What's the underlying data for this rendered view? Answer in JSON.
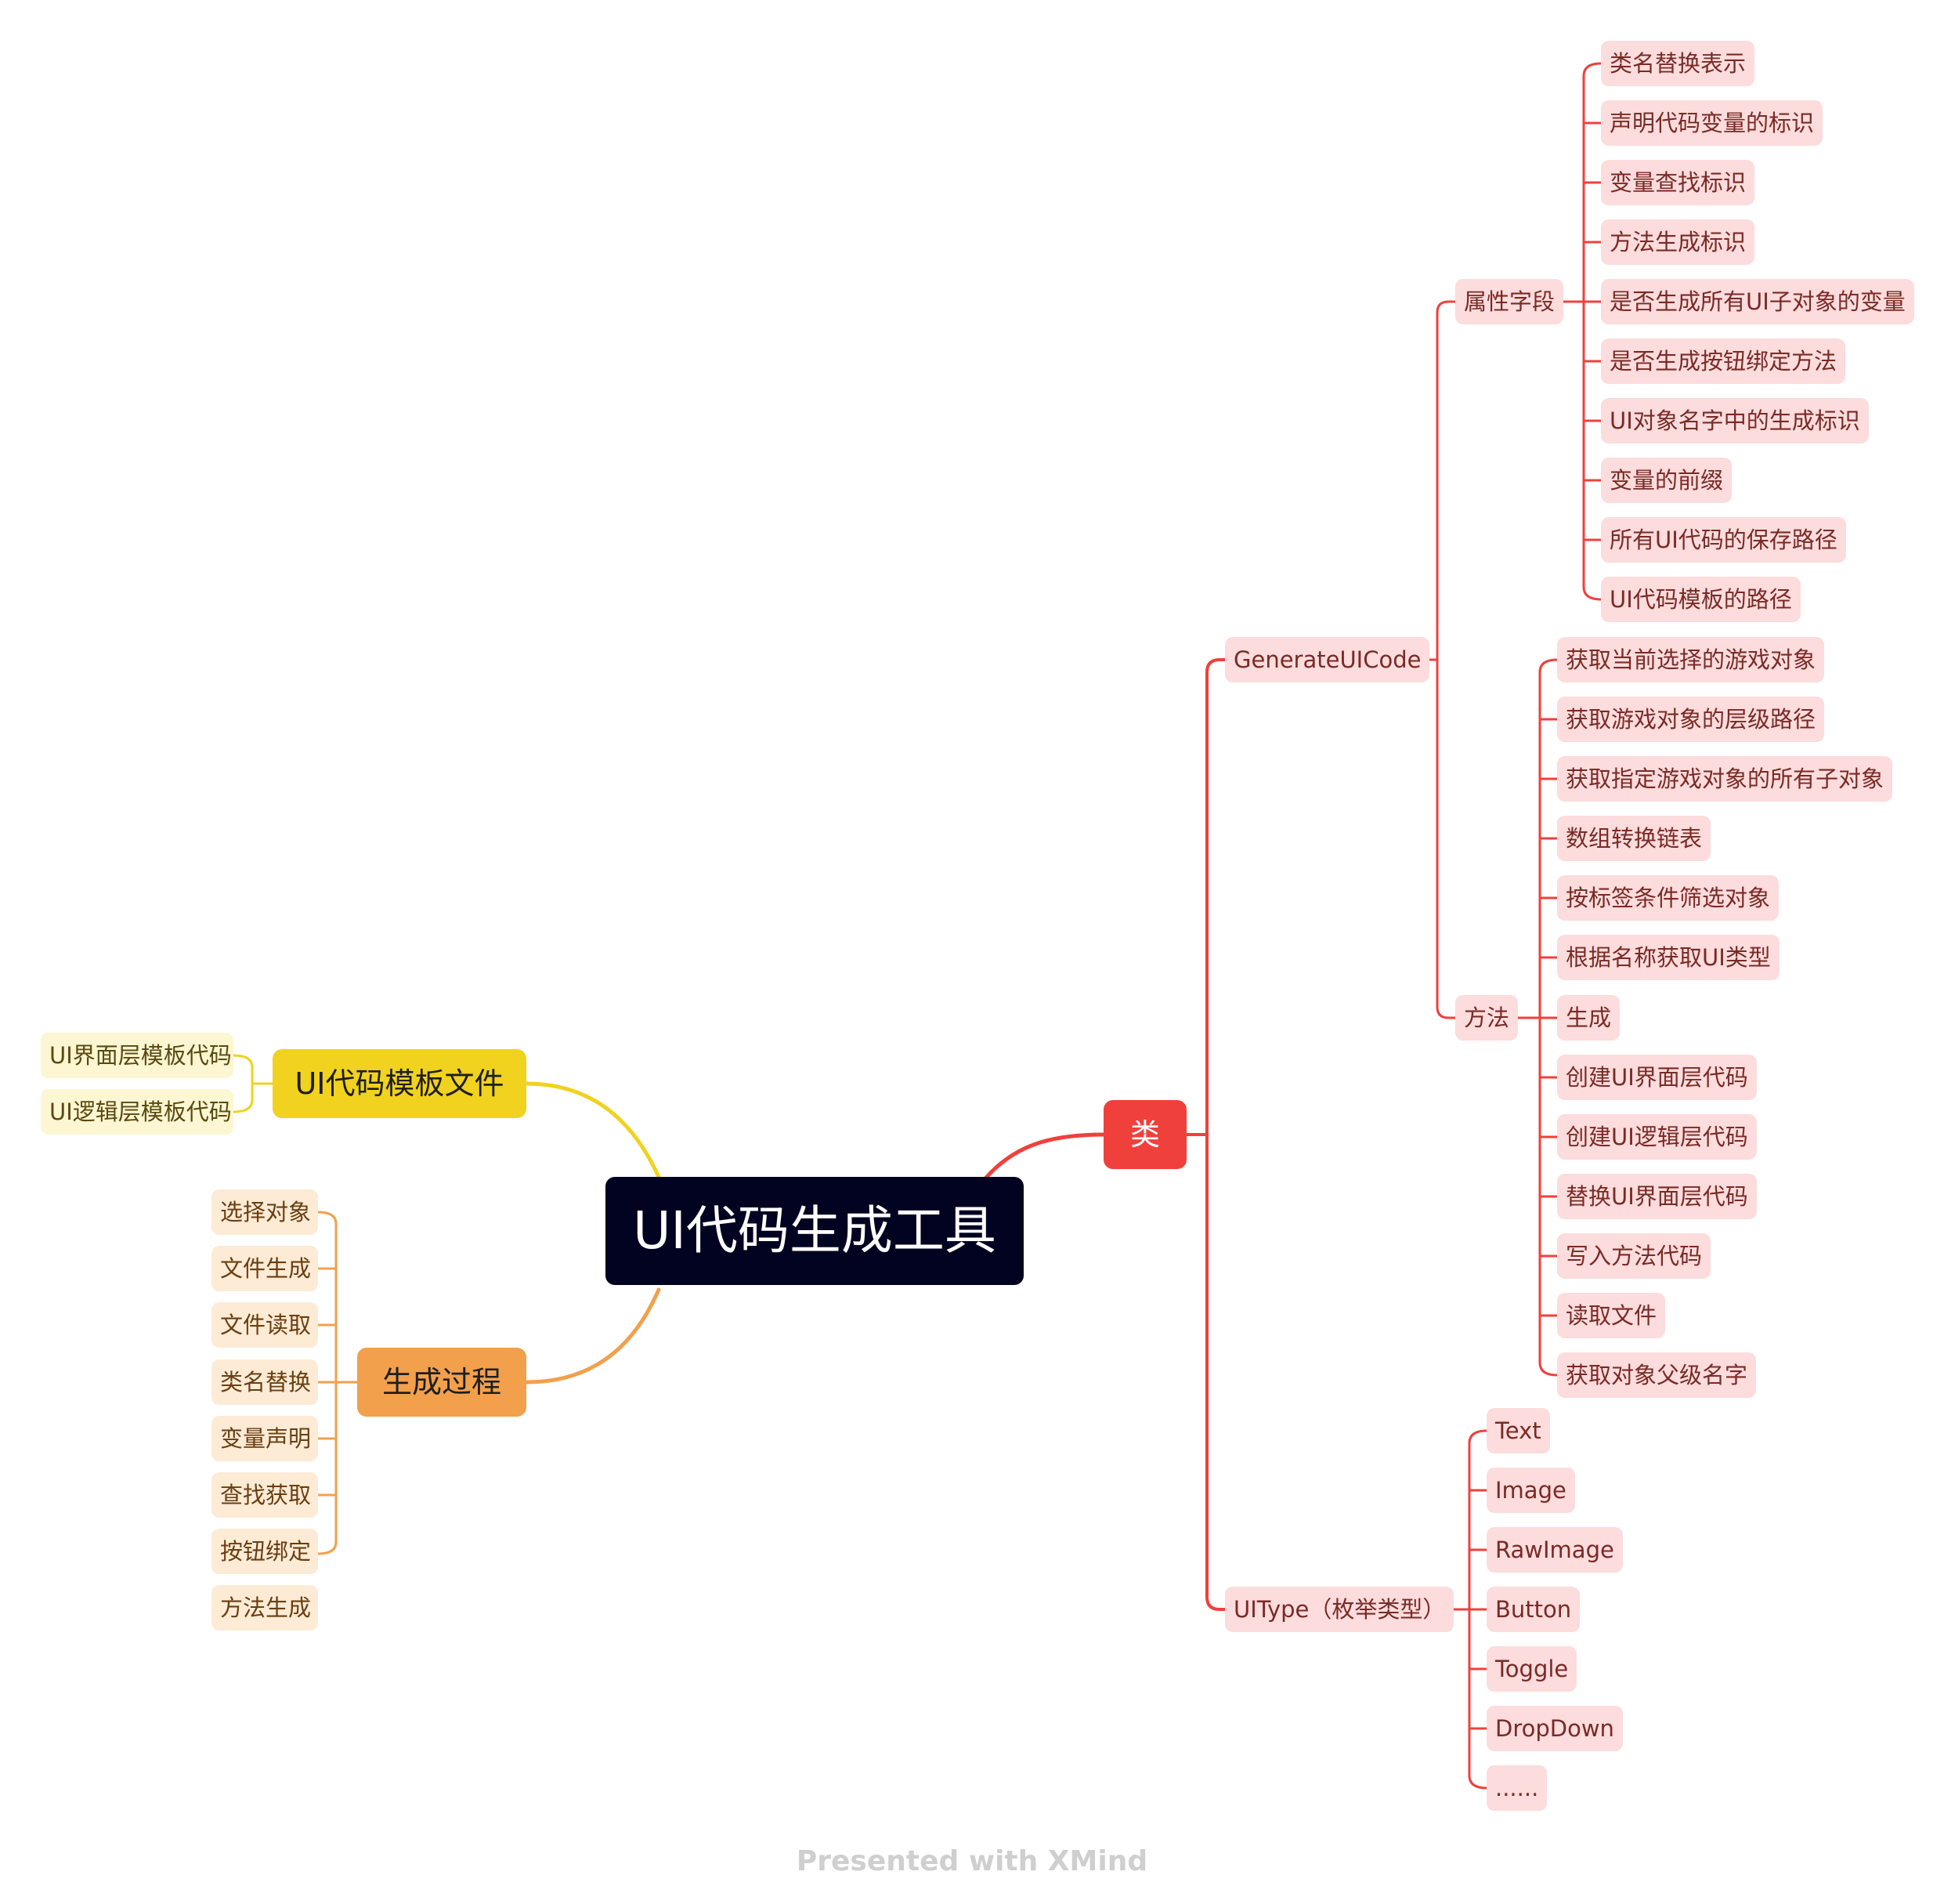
{
  "central_topic": "UI代码生成工具",
  "colors": {
    "red": "#f0403c",
    "yellow": "#f0d21f",
    "orange": "#f2a04c",
    "center": "#020321"
  },
  "branches": {
    "class": {
      "label": "类",
      "generate_ui_code": {
        "label": "GenerateUICode",
        "fields": {
          "label": "属性字段",
          "items": [
            "类名替换表示",
            "声明代码变量的标识",
            "变量查找标识",
            "方法生成标识",
            "是否生成所有UI子对象的变量",
            "是否生成按钮绑定方法",
            "UI对象名字中的生成标识",
            "变量的前缀",
            "所有UI代码的保存路径",
            "UI代码模板的路径"
          ]
        },
        "methods": {
          "label": "方法",
          "items": [
            "获取当前选择的游戏对象",
            "获取游戏对象的层级路径",
            "获取指定游戏对象的所有子对象",
            "数组转换链表",
            "按标签条件筛选对象",
            "根据名称获取UI类型",
            "生成",
            "创建UI界面层代码",
            "创建UI逻辑层代码",
            "替换UI界面层代码",
            "写入方法代码",
            "读取文件",
            "获取对象父级名字"
          ]
        }
      },
      "ui_type": {
        "label": "UIType（枚举类型）",
        "items": [
          "Text",
          "Image",
          "RawImage",
          "Button",
          "Toggle",
          "DropDown",
          "......"
        ]
      }
    },
    "templates": {
      "label": "UI代码模板文件",
      "items": [
        "UI界面层模板代码",
        "UI逻辑层模板代码"
      ]
    },
    "process": {
      "label": "生成过程",
      "items": [
        "选择对象",
        "文件生成",
        "文件读取",
        "类名替换",
        "变量声明",
        "查找获取",
        "按钮绑定",
        "方法生成"
      ]
    }
  },
  "watermark": "Presented with XMind"
}
